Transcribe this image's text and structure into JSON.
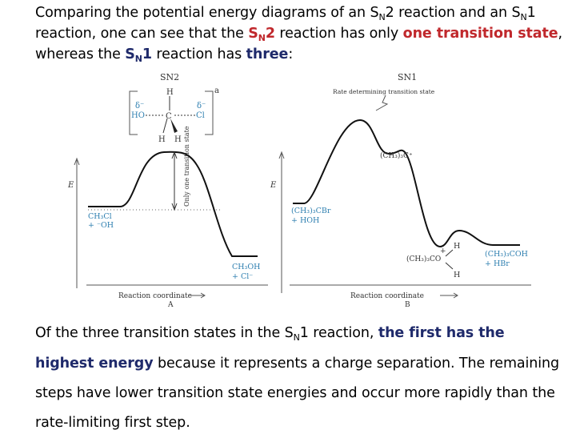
{
  "intro": {
    "p1": "Comparing the potential energy diagrams of an S",
    "sub1": "N",
    "p2": "2 reaction and an S",
    "sub2": "N",
    "p3": "1 reaction, one can see that the ",
    "sn2_a": "S",
    "sn2_sub": "N",
    "sn2_b": "2",
    "p4": " reaction has only ",
    "one": "one transition state",
    "p5": ", whereas the ",
    "sn1_a": "S",
    "sn1_sub": "N",
    "sn1_b": "1",
    "p6": " reaction has ",
    "three": "three",
    "p7": ":"
  },
  "diagram_a": {
    "title": "SN2",
    "energy_axis": "E",
    "x_axis": "Reaction coordinate",
    "panel_label": "A",
    "ts_vertical": "Only one transition state",
    "ts_mark": "a",
    "ts_h_top": "H",
    "ts_delta_left": "δ⁻",
    "ts_ho": "HO",
    "ts_c": "C",
    "ts_delta_right": "δ⁻",
    "ts_cl": "Cl",
    "ts_h_bl": "H",
    "ts_h_br": "H",
    "reactant_1": "CH₃Cl",
    "reactant_2": "+ ⁻OH",
    "product_1": "CH₃OH",
    "product_2": "+ Cl⁻"
  },
  "diagram_b": {
    "title": "SN1",
    "energy_axis": "E",
    "x_axis": "Reaction coordinate",
    "panel_label": "B",
    "rate_ts": "Rate determining transition state",
    "intermediate_1": "(CH₃)₃C⁺",
    "reactant_1": "(CH₃)₃CBr",
    "reactant_2": "+ HOH",
    "int2_h": "H",
    "int2_plus": "+",
    "int2_main": "(CH₃)₃CO",
    "int2_h2": "H",
    "product_1": "(CH₃)₃COH",
    "product_2": "+ HBr"
  },
  "conclusion": {
    "p1": "Of the three transition states in the S",
    "sub": "N",
    "p2": "1 reaction, ",
    "highlight": "the first has the highest energy",
    "p3": " because it represents a charge separation. The remaining steps have lower transition state energies and occur more rapidly than the rate-limiting first step."
  },
  "colors": {
    "red": "#c0282c",
    "navy": "#1f2a6b",
    "blue_label": "#2e7fb0"
  }
}
